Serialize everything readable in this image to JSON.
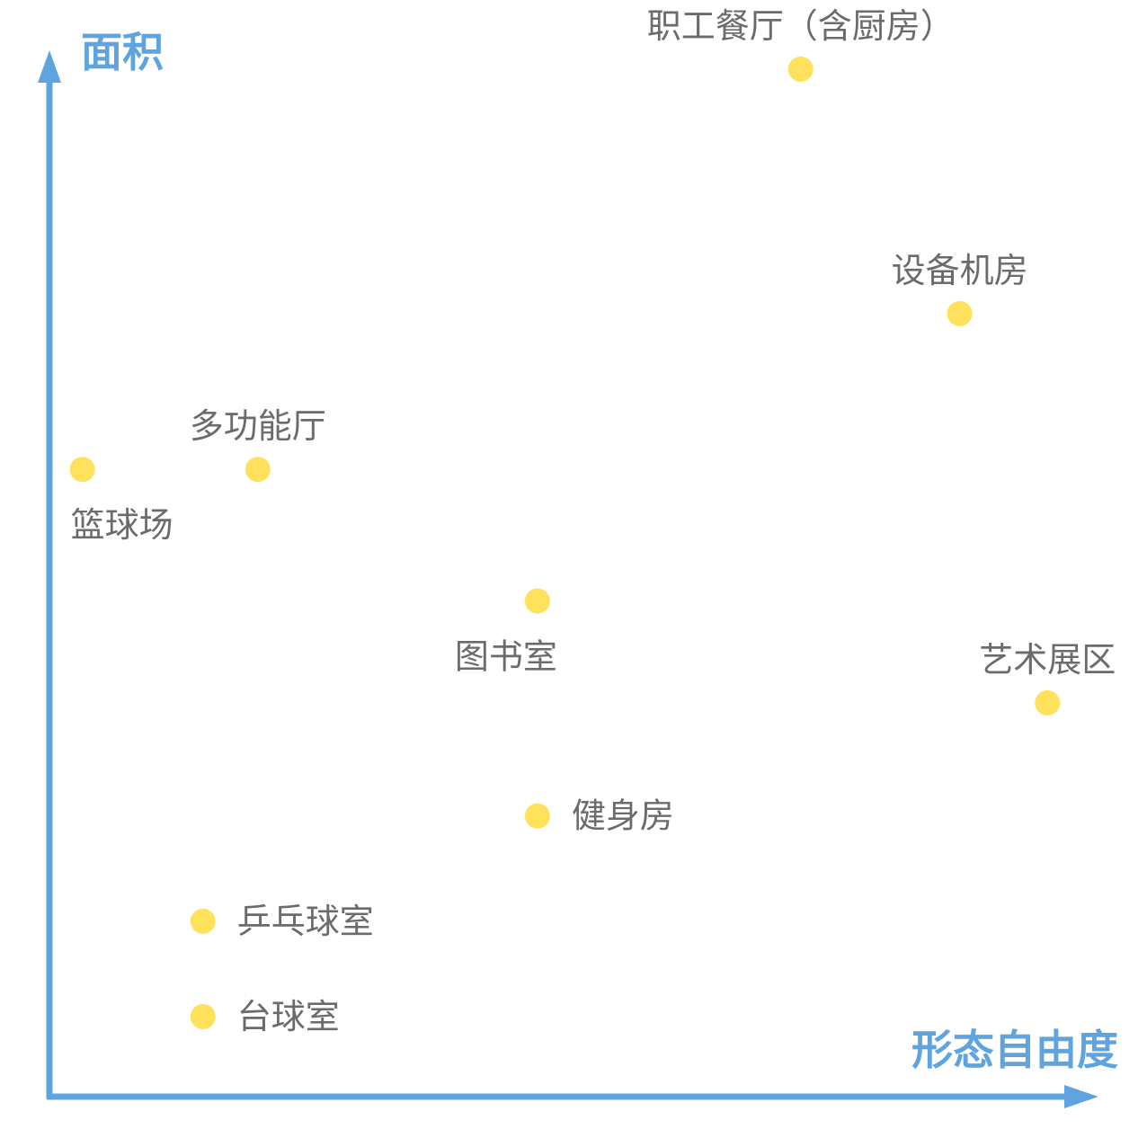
{
  "chart_data": {
    "type": "scatter",
    "title": "",
    "xlabel": "形态自由度",
    "ylabel": "面积",
    "xlim": [
      0,
      100
    ],
    "ylim": [
      0,
      100
    ],
    "grid": false,
    "axis_color": "#5fa4de",
    "point_color": "#ffe15c",
    "label_color": "#6b6b6b",
    "points": [
      {
        "label": "职工餐厅（含厨房）",
        "x": 68.5,
        "y": 93.7,
        "label_pos": "above"
      },
      {
        "label": "设备机房",
        "x": 83.0,
        "y": 71.4,
        "label_pos": "above"
      },
      {
        "label": "多功能厅",
        "x": 19.0,
        "y": 57.2,
        "label_pos": "above"
      },
      {
        "label": "篮球场",
        "x": 3.0,
        "y": 57.2,
        "label_pos": "below"
      },
      {
        "label": "图书室",
        "x": 44.5,
        "y": 45.2,
        "label_pos": "below"
      },
      {
        "label": "艺术展区",
        "x": 91.0,
        "y": 35.9,
        "label_pos": "above"
      },
      {
        "label": "健身房",
        "x": 44.5,
        "y": 25.6,
        "label_pos": "right"
      },
      {
        "label": "乒乓球室",
        "x": 14.0,
        "y": 16.0,
        "label_pos": "right"
      },
      {
        "label": "台球室",
        "x": 14.0,
        "y": 7.3,
        "label_pos": "right"
      }
    ]
  }
}
